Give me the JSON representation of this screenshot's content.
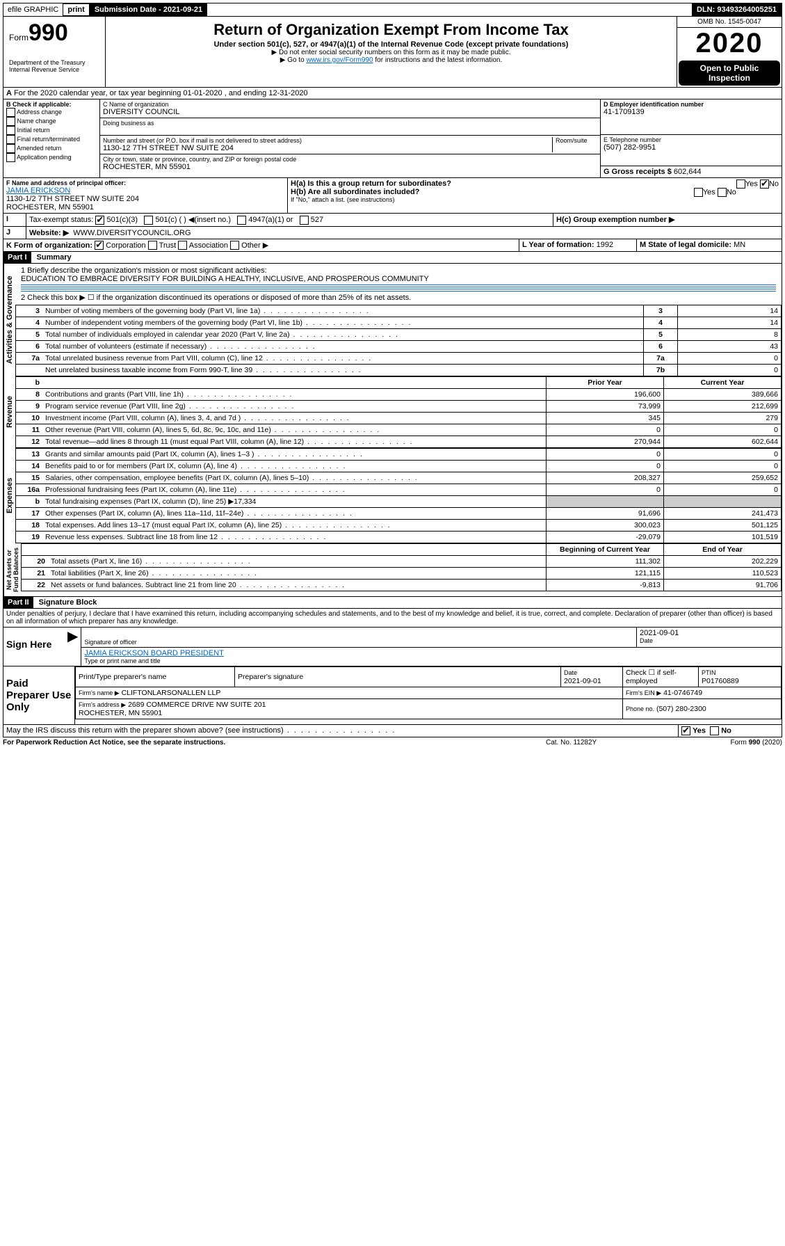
{
  "topbar": {
    "efile": "efile GRAPHIC",
    "print": "print",
    "subdate_label": "Submission Date - 2021-09-21",
    "dln": "DLN: 93493264005251"
  },
  "header": {
    "form_word": "Form",
    "form_no": "990",
    "title": "Return of Organization Exempt From Income Tax",
    "subtitle": "Under section 501(c), 527, or 4947(a)(1) of the Internal Revenue Code (except private foundations)",
    "note1": "▶ Do not enter social security numbers on this form as it may be made public.",
    "note2_pre": "▶ Go to ",
    "note2_link": "www.irs.gov/Form990",
    "note2_post": " for instructions and the latest information.",
    "dept": "Department of the Treasury\nInternal Revenue Service",
    "omb": "OMB No. 1545-0047",
    "year": "2020",
    "open": "Open to Public Inspection"
  },
  "lineA": "For the 2020 calendar year, or tax year beginning 01-01-2020    , and ending 12-31-2020",
  "boxB": {
    "label": "B Check if applicable:",
    "items": [
      "Address change",
      "Name change",
      "Initial return",
      "Final return/terminated",
      "Amended return",
      "Application pending"
    ]
  },
  "boxC": {
    "label": "C Name of organization",
    "name": "DIVERSITY COUNCIL",
    "dba_label": "Doing business as",
    "addr_label": "Number and street (or P.O. box if mail is not delivered to street address)",
    "room_label": "Room/suite",
    "addr": "1130-12 7TH STREET NW SUITE 204",
    "city_label": "City or town, state or province, country, and ZIP or foreign postal code",
    "city": "ROCHESTER, MN  55901"
  },
  "boxD": {
    "label": "D Employer identification number",
    "val": "41-1709139"
  },
  "boxE": {
    "label": "E Telephone number",
    "val": "(507) 282-9951"
  },
  "boxG": {
    "label": "G Gross receipts $",
    "val": "602,644"
  },
  "boxF": {
    "label": "F  Name and address of principal officer:",
    "name": "JAMIA ERICKSON",
    "addr": "1130-1/2 7TH STREET NW SUITE 204\nROCHESTER, MN  55901"
  },
  "boxH": {
    "a": "H(a)  Is this a group return for subordinates?",
    "b": "H(b)  Are all subordinates included?",
    "b2": "If \"No,\" attach a list. (see instructions)",
    "c": "H(c)  Group exemption number ▶",
    "yes": "Yes",
    "no": "No"
  },
  "boxI": {
    "label": "Tax-exempt status:",
    "opts": [
      "501(c)(3)",
      "501(c) (  ) ◀(insert no.)",
      "4947(a)(1) or",
      "527"
    ]
  },
  "boxJ": {
    "label": "Website: ▶",
    "val": "WWW.DIVERSITYCOUNCIL.ORG"
  },
  "boxK": {
    "label": "K Form of organization:",
    "opts": [
      "Corporation",
      "Trust",
      "Association",
      "Other ▶"
    ]
  },
  "boxL": {
    "label": "L Year of formation:",
    "val": "1992"
  },
  "boxM": {
    "label": "M State of legal domicile:",
    "val": "MN"
  },
  "part1": {
    "hdr": "Part I",
    "title": "Summary"
  },
  "summary": {
    "q1": "1  Briefly describe the organization's mission or most significant activities:",
    "mission": "EDUCATION TO EMBRACE DIVERSITY FOR BUILDING A HEALTHY, INCLUSIVE, AND PROSPEROUS COMMUNITY",
    "q2": "2   Check this box ▶ ☐  if the organization discontinued its operations or disposed of more than 25% of its net assets."
  },
  "gov_rows": [
    {
      "n": "3",
      "t": "Number of voting members of the governing body (Part VI, line 1a)",
      "k": "3",
      "v": "14"
    },
    {
      "n": "4",
      "t": "Number of independent voting members of the governing body (Part VI, line 1b)",
      "k": "4",
      "v": "14"
    },
    {
      "n": "5",
      "t": "Total number of individuals employed in calendar year 2020 (Part V, line 2a)",
      "k": "5",
      "v": "8"
    },
    {
      "n": "6",
      "t": "Total number of volunteers (estimate if necessary)",
      "k": "6",
      "v": "43"
    },
    {
      "n": "7a",
      "t": "Total unrelated business revenue from Part VIII, column (C), line 12",
      "k": "7a",
      "v": "0"
    },
    {
      "n": "",
      "t": "Net unrelated business taxable income from Form 990-T, line 39",
      "k": "7b",
      "v": "0"
    }
  ],
  "col_hdr": {
    "b": "b",
    "prior": "Prior Year",
    "current": "Current Year"
  },
  "rev_rows": [
    {
      "n": "8",
      "t": "Contributions and grants (Part VIII, line 1h)",
      "p": "196,600",
      "c": "389,666"
    },
    {
      "n": "9",
      "t": "Program service revenue (Part VIII, line 2g)",
      "p": "73,999",
      "c": "212,699"
    },
    {
      "n": "10",
      "t": "Investment income (Part VIII, column (A), lines 3, 4, and 7d )",
      "p": "345",
      "c": "279"
    },
    {
      "n": "11",
      "t": "Other revenue (Part VIII, column (A), lines 5, 6d, 8c, 9c, 10c, and 11e)",
      "p": "0",
      "c": "0"
    },
    {
      "n": "12",
      "t": "Total revenue—add lines 8 through 11 (must equal Part VIII, column (A), line 12)",
      "p": "270,944",
      "c": "602,644"
    }
  ],
  "exp_rows": [
    {
      "n": "13",
      "t": "Grants and similar amounts paid (Part IX, column (A), lines 1–3 )",
      "p": "0",
      "c": "0"
    },
    {
      "n": "14",
      "t": "Benefits paid to or for members (Part IX, column (A), line 4)",
      "p": "0",
      "c": "0"
    },
    {
      "n": "15",
      "t": "Salaries, other compensation, employee benefits (Part IX, column (A), lines 5–10)",
      "p": "208,327",
      "c": "259,652"
    },
    {
      "n": "16a",
      "t": "Professional fundraising fees (Part IX, column (A), line 11e)",
      "p": "0",
      "c": "0"
    },
    {
      "n": "b",
      "t": "Total fundraising expenses (Part IX, column (D), line 25) ▶17,334",
      "p": "",
      "c": ""
    },
    {
      "n": "17",
      "t": "Other expenses (Part IX, column (A), lines 11a–11d, 11f–24e)",
      "p": "91,696",
      "c": "241,473"
    },
    {
      "n": "18",
      "t": "Total expenses. Add lines 13–17 (must equal Part IX, column (A), line 25)",
      "p": "300,023",
      "c": "501,125"
    },
    {
      "n": "19",
      "t": "Revenue less expenses. Subtract line 18 from line 12",
      "p": "-29,079",
      "c": "101,519"
    }
  ],
  "na_hdr": {
    "beg": "Beginning of Current Year",
    "end": "End of Year"
  },
  "na_rows": [
    {
      "n": "20",
      "t": "Total assets (Part X, line 16)",
      "p": "111,302",
      "c": "202,229"
    },
    {
      "n": "21",
      "t": "Total liabilities (Part X, line 26)",
      "p": "121,115",
      "c": "110,523"
    },
    {
      "n": "22",
      "t": "Net assets or fund balances. Subtract line 21 from line 20",
      "p": "-9,813",
      "c": "91,706"
    }
  ],
  "part2": {
    "hdr": "Part II",
    "title": "Signature Block"
  },
  "perjury": "Under penalties of perjury, I declare that I have examined this return, including accompanying schedules and statements, and to the best of my knowledge and belief, it is true, correct, and complete. Declaration of preparer (other than officer) is based on all information of which preparer has any knowledge.",
  "sign": {
    "here": "Sign Here",
    "date": "2021-09-01",
    "sig_label": "Signature of officer",
    "date_label": "Date",
    "name": "JAMIA ERICKSON  BOARD PRESIDENT",
    "name_label": "Type or print name and title"
  },
  "paid": {
    "title": "Paid Preparer Use Only",
    "h1": "Print/Type preparer's name",
    "h2": "Preparer's signature",
    "h3": "Date",
    "h4": "Check ☐ if self-employed",
    "h5": "PTIN",
    "date": "2021-09-01",
    "ptin": "P01760889",
    "firm_label": "Firm's name   ▶",
    "firm": "CLIFTONLARSONALLEN LLP",
    "ein_label": "Firm's EIN ▶",
    "ein": "41-0746749",
    "addr_label": "Firm's address ▶",
    "addr": "2689 COMMERCE DRIVE NW SUITE 201\nROCHESTER, MN  55901",
    "phone_label": "Phone no.",
    "phone": "(507) 280-2300"
  },
  "discuss": "May the IRS discuss this return with the preparer shown above? (see instructions)",
  "footer": {
    "l": "For Paperwork Reduction Act Notice, see the separate instructions.",
    "m": "Cat. No. 11282Y",
    "r": "Form 990 (2020)"
  }
}
